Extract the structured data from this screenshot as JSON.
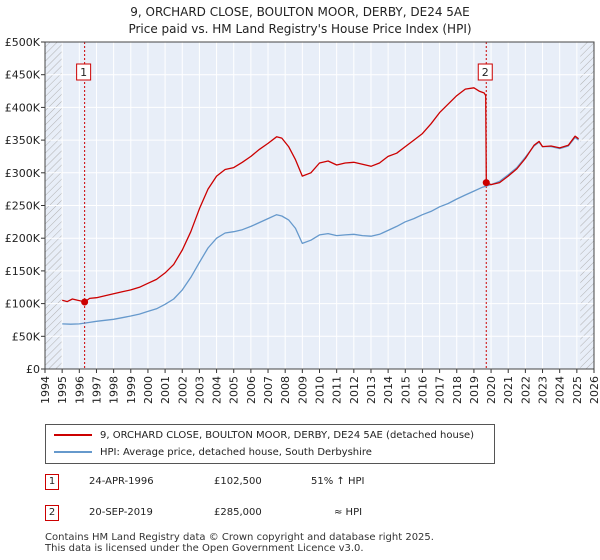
{
  "header": {
    "title_line1": "9, ORCHARD CLOSE, BOULTON MOOR, DERBY, DE24 5AE",
    "title_line2": "Price paid vs. HM Land Registry's House Price Index (HPI)"
  },
  "colors": {
    "price": "#cc0000",
    "hpi": "#6699cc",
    "band": "#e8eef8",
    "grid": "#ffffff",
    "hatch": "#b0b0b0"
  },
  "legend": {
    "price_label": "9, ORCHARD CLOSE, BOULTON MOOR, DERBY, DE24 5AE (detached house)",
    "hpi_label": "HPI: Average price, detached house, South Derbyshire"
  },
  "transactions": [
    {
      "marker": "1",
      "date": "24-APR-1996",
      "price": "£102,500",
      "hpi_relation": "51% ↑ HPI"
    },
    {
      "marker": "2",
      "date": "20-SEP-2019",
      "price": "£285,000",
      "hpi_relation": "≈ HPI"
    }
  ],
  "footer": {
    "line1": "Contains HM Land Registry data © Crown copyright and database right 2025.",
    "line2": "This data is licensed under the Open Government Licence v3.0."
  },
  "chart_data": {
    "type": "line",
    "title": "9, ORCHARD CLOSE, BOULTON MOOR, DERBY, DE24 5AE — Price paid vs. HM Land Registry's House Price Index (HPI)",
    "xlabel": "",
    "ylabel": "",
    "xlim": [
      1994,
      2026
    ],
    "ylim": [
      0,
      500000
    ],
    "x_ticks": [
      "1994",
      "1995",
      "1996",
      "1997",
      "1998",
      "1999",
      "2000",
      "2001",
      "2002",
      "2003",
      "2004",
      "2005",
      "2006",
      "2007",
      "2008",
      "2009",
      "2010",
      "2011",
      "2012",
      "2013",
      "2014",
      "2015",
      "2016",
      "2017",
      "2018",
      "2019",
      "2020",
      "2021",
      "2022",
      "2023",
      "2024",
      "2025",
      "2026"
    ],
    "y_ticks": [
      {
        "value": 0,
        "label": "£0"
      },
      {
        "value": 50000,
        "label": "£50K"
      },
      {
        "value": 100000,
        "label": "£100K"
      },
      {
        "value": 150000,
        "label": "£150K"
      },
      {
        "value": 200000,
        "label": "£200K"
      },
      {
        "value": 250000,
        "label": "£250K"
      },
      {
        "value": 300000,
        "label": "£300K"
      },
      {
        "value": 350000,
        "label": "£350K"
      },
      {
        "value": 400000,
        "label": "£400K"
      },
      {
        "value": 450000,
        "label": "£450K"
      },
      {
        "value": 500000,
        "label": "£500K"
      }
    ],
    "data_range": [
      1995.0,
      2025.2
    ],
    "series": [
      {
        "name": "9, ORCHARD CLOSE, BOULTON MOOR, DERBY, DE24 5AE (detached house)",
        "color": "#cc0000",
        "points": [
          [
            1995.0,
            105000
          ],
          [
            1995.3,
            103000
          ],
          [
            1995.6,
            107000
          ],
          [
            1995.9,
            105000
          ],
          [
            1996.1,
            104000
          ],
          [
            1996.31,
            102500
          ],
          [
            1996.6,
            108000
          ],
          [
            1997.0,
            109000
          ],
          [
            1997.5,
            112000
          ],
          [
            1998.0,
            115000
          ],
          [
            1998.5,
            118000
          ],
          [
            1999.0,
            121000
          ],
          [
            1999.5,
            125000
          ],
          [
            2000.0,
            131000
          ],
          [
            2000.5,
            137000
          ],
          [
            2001.0,
            147000
          ],
          [
            2001.5,
            160000
          ],
          [
            2002.0,
            182000
          ],
          [
            2002.5,
            210000
          ],
          [
            2003.0,
            245000
          ],
          [
            2003.5,
            275000
          ],
          [
            2004.0,
            295000
          ],
          [
            2004.5,
            305000
          ],
          [
            2005.0,
            308000
          ],
          [
            2005.5,
            316000
          ],
          [
            2006.0,
            325000
          ],
          [
            2006.5,
            336000
          ],
          [
            2007.0,
            345000
          ],
          [
            2007.5,
            355000
          ],
          [
            2007.8,
            353000
          ],
          [
            2008.2,
            340000
          ],
          [
            2008.6,
            320000
          ],
          [
            2009.0,
            295000
          ],
          [
            2009.5,
            300000
          ],
          [
            2010.0,
            315000
          ],
          [
            2010.5,
            318000
          ],
          [
            2011.0,
            312000
          ],
          [
            2011.5,
            315000
          ],
          [
            2012.0,
            316000
          ],
          [
            2012.5,
            313000
          ],
          [
            2013.0,
            310000
          ],
          [
            2013.5,
            315000
          ],
          [
            2014.0,
            325000
          ],
          [
            2014.5,
            330000
          ],
          [
            2015.0,
            340000
          ],
          [
            2015.5,
            350000
          ],
          [
            2016.0,
            360000
          ],
          [
            2016.5,
            375000
          ],
          [
            2017.0,
            392000
          ],
          [
            2017.5,
            405000
          ],
          [
            2018.0,
            418000
          ],
          [
            2018.5,
            428000
          ],
          [
            2019.0,
            430000
          ],
          [
            2019.3,
            425000
          ],
          [
            2019.6,
            422000
          ],
          [
            2019.69,
            418000
          ],
          [
            2019.72,
            285000
          ],
          [
            2020.0,
            282000
          ],
          [
            2020.5,
            285000
          ],
          [
            2021.0,
            295000
          ],
          [
            2021.5,
            306000
          ],
          [
            2022.0,
            322000
          ],
          [
            2022.5,
            342000
          ],
          [
            2022.8,
            348000
          ],
          [
            2023.0,
            340000
          ],
          [
            2023.5,
            341000
          ],
          [
            2024.0,
            338000
          ],
          [
            2024.5,
            342000
          ],
          [
            2024.9,
            356000
          ],
          [
            2025.1,
            352000
          ]
        ]
      },
      {
        "name": "HPI: Average price, detached house, South Derbyshire",
        "color": "#6699cc",
        "points": [
          [
            1995.0,
            69000
          ],
          [
            1995.5,
            68500
          ],
          [
            1996.0,
            69000
          ],
          [
            1996.5,
            71000
          ],
          [
            1997.0,
            73000
          ],
          [
            1997.5,
            74500
          ],
          [
            1998.0,
            76000
          ],
          [
            1998.5,
            78500
          ],
          [
            1999.0,
            81000
          ],
          [
            1999.5,
            84000
          ],
          [
            2000.0,
            88000
          ],
          [
            2000.5,
            92000
          ],
          [
            2001.0,
            99000
          ],
          [
            2001.5,
            107000
          ],
          [
            2002.0,
            121000
          ],
          [
            2002.5,
            140000
          ],
          [
            2003.0,
            163000
          ],
          [
            2003.5,
            185000
          ],
          [
            2004.0,
            200000
          ],
          [
            2004.5,
            208000
          ],
          [
            2005.0,
            210000
          ],
          [
            2005.5,
            213000
          ],
          [
            2006.0,
            218000
          ],
          [
            2006.5,
            224000
          ],
          [
            2007.0,
            230000
          ],
          [
            2007.5,
            236000
          ],
          [
            2007.8,
            234000
          ],
          [
            2008.2,
            228000
          ],
          [
            2008.6,
            215000
          ],
          [
            2009.0,
            192000
          ],
          [
            2009.5,
            197000
          ],
          [
            2010.0,
            205000
          ],
          [
            2010.5,
            207000
          ],
          [
            2011.0,
            204000
          ],
          [
            2011.5,
            205000
          ],
          [
            2012.0,
            206000
          ],
          [
            2012.5,
            204000
          ],
          [
            2013.0,
            203000
          ],
          [
            2013.5,
            206000
          ],
          [
            2014.0,
            212000
          ],
          [
            2014.5,
            218000
          ],
          [
            2015.0,
            225000
          ],
          [
            2015.5,
            230000
          ],
          [
            2016.0,
            236000
          ],
          [
            2016.5,
            241000
          ],
          [
            2017.0,
            248000
          ],
          [
            2017.5,
            253000
          ],
          [
            2018.0,
            260000
          ],
          [
            2018.5,
            266000
          ],
          [
            2019.0,
            272000
          ],
          [
            2019.5,
            278000
          ],
          [
            2020.0,
            282000
          ],
          [
            2020.5,
            287000
          ],
          [
            2021.0,
            297000
          ],
          [
            2021.5,
            308000
          ],
          [
            2022.0,
            324000
          ],
          [
            2022.5,
            341000
          ],
          [
            2022.8,
            347000
          ],
          [
            2023.0,
            340000
          ],
          [
            2023.5,
            340000
          ],
          [
            2024.0,
            337000
          ],
          [
            2024.5,
            341000
          ],
          [
            2024.9,
            354000
          ],
          [
            2025.1,
            350000
          ]
        ]
      }
    ],
    "sale_markers": [
      {
        "label": "1",
        "x": 1996.31,
        "y": 102500
      },
      {
        "label": "2",
        "x": 2019.72,
        "y": 285000
      }
    ]
  }
}
